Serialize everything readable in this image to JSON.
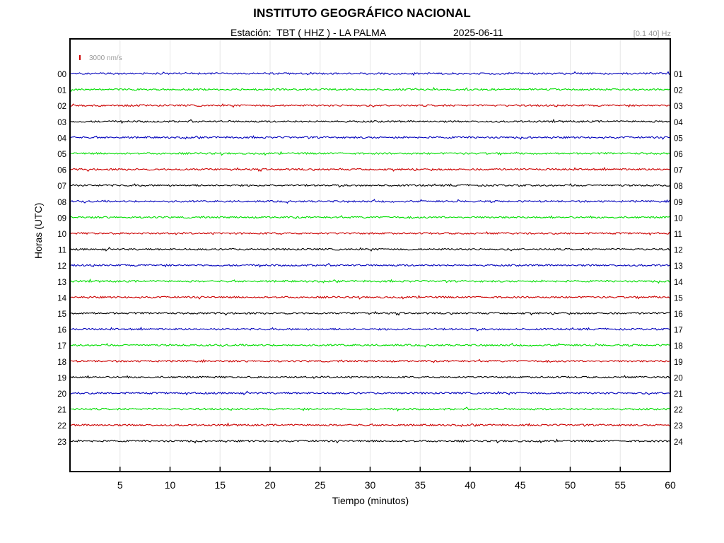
{
  "header": {
    "title": "INSTITUTO GEOGRÁFICO NACIONAL",
    "station_line": "Estación:  TBT ( HHZ ) - LA PALMA",
    "date": "2025-06-11",
    "filter": "[0.1 40] Hz"
  },
  "chart_data": {
    "type": "line",
    "title": "INSTITUTO GEOGRÁFICO NACIONAL",
    "xlabel": "Tiempo (minutos)",
    "ylabel": "Horas (UTC)",
    "xlim": [
      0,
      60
    ],
    "x_ticks": [
      "5",
      "10",
      "15",
      "20",
      "25",
      "30",
      "35",
      "40",
      "45",
      "50",
      "55",
      "60"
    ],
    "left_tick_labels": [
      "00",
      "01",
      "02",
      "03",
      "04",
      "05",
      "06",
      "07",
      "08",
      "09",
      "10",
      "11",
      "12",
      "13",
      "14",
      "15",
      "16",
      "17",
      "18",
      "19",
      "20",
      "21",
      "22",
      "23"
    ],
    "right_tick_labels": [
      "01",
      "02",
      "03",
      "04",
      "05",
      "06",
      "07",
      "08",
      "09",
      "10",
      "11",
      "12",
      "13",
      "14",
      "15",
      "16",
      "17",
      "18",
      "19",
      "20",
      "21",
      "22",
      "23",
      "24"
    ],
    "scale_label": "3000 nm/s",
    "trace_color_cycle": [
      "#0000bb",
      "#00dd00",
      "#cc0000",
      "#000000"
    ],
    "grid": true,
    "legend": "none"
  }
}
